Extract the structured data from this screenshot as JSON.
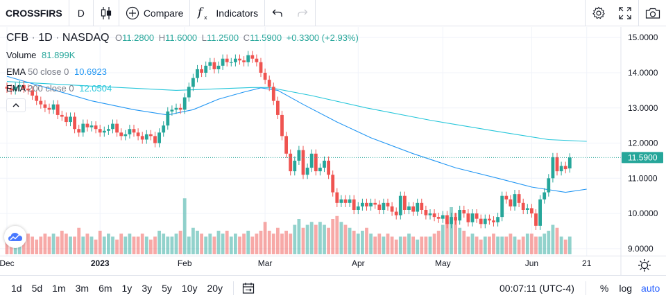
{
  "toolbar": {
    "symbol": "CROSSFIRS",
    "interval": "D",
    "compare_label": "Compare",
    "indicators_label": "Indicators"
  },
  "legend": {
    "symbol": "CFB",
    "interval": "1D",
    "exchange": "NASDAQ",
    "o_label": "O",
    "o_value": "11.2800",
    "h_label": "H",
    "h_value": "11.6000",
    "l_label": "L",
    "l_value": "11.2500",
    "c_label": "C",
    "c_value": "11.5900",
    "change": "+0.3300 (+2.93%)",
    "volume_label": "Volume",
    "volume_value": "81.899K",
    "ema50_label": "EMA",
    "ema50_params": "50 close 0",
    "ema50_value": "10.6923",
    "ema200_label": "EMA",
    "ema200_params": "200 close 0",
    "ema200_value": "12.0504"
  },
  "colors": {
    "up": "#26a69a",
    "down": "#ef5350",
    "ema50": "#2196f3",
    "ema200": "#26c6da",
    "price_tag": "#26a69a"
  },
  "chart_data": {
    "type": "candlestick",
    "symbol": "CFB",
    "exchange": "NASDAQ",
    "interval": "1D",
    "ylim": [
      8.8,
      15.3
    ],
    "yticks": [
      "15.0000",
      "14.0000",
      "13.0000",
      "12.0000",
      "11.0000",
      "10.0000",
      "9.0000"
    ],
    "ytick_values": [
      15,
      14,
      13,
      12,
      11,
      10,
      9
    ],
    "xticks": [
      {
        "label": "Dec",
        "index": 0,
        "bold": false
      },
      {
        "label": "2023",
        "index": 22,
        "bold": true
      },
      {
        "label": "Feb",
        "index": 42,
        "bold": false
      },
      {
        "label": "Mar",
        "index": 61,
        "bold": false
      },
      {
        "label": "Apr",
        "index": 83,
        "bold": false
      },
      {
        "label": "May",
        "index": 103,
        "bold": false
      },
      {
        "label": "Jun",
        "index": 124,
        "bold": false
      },
      {
        "label": "21",
        "index": 137,
        "bold": false
      }
    ],
    "last_price": 11.59,
    "last_price_label": "11.5900",
    "close": [
      13.55,
      13.5,
      13.6,
      13.65,
      13.55,
      13.5,
      13.35,
      13.2,
      13.1,
      13.0,
      12.95,
      13.1,
      12.8,
      12.75,
      12.6,
      12.75,
      12.4,
      12.3,
      12.55,
      12.45,
      12.5,
      12.4,
      12.3,
      12.35,
      12.4,
      12.55,
      12.3,
      12.2,
      12.25,
      12.4,
      12.3,
      12.2,
      12.1,
      12.25,
      12.2,
      12.0,
      12.3,
      12.5,
      12.9,
      12.95,
      13.0,
      12.95,
      13.3,
      13.6,
      13.85,
      14.1,
      14.0,
      14.2,
      14.3,
      14.1,
      14.2,
      14.4,
      14.3,
      14.3,
      14.4,
      14.35,
      14.3,
      14.5,
      14.4,
      14.3,
      14.0,
      13.8,
      13.6,
      13.2,
      12.8,
      12.2,
      11.7,
      11.2,
      11.5,
      11.8,
      11.1,
      11.3,
      11.7,
      11.2,
      11.3,
      11.5,
      11.1,
      10.6,
      10.3,
      10.4,
      10.3,
      10.4,
      10.1,
      10.2,
      10.3,
      10.2,
      10.3,
      10.25,
      10.1,
      10.3,
      10.2,
      10.05,
      9.95,
      10.5,
      10.1,
      10.2,
      10.05,
      10.3,
      10.1,
      9.95,
      10.0,
      9.9,
      9.85,
      9.95,
      9.7,
      9.9,
      9.8,
      10.1,
      10.0,
      9.75,
      10.0,
      9.85,
      9.7,
      9.85,
      9.8,
      9.75,
      9.9,
      10.5,
      10.4,
      10.2,
      10.55,
      10.3,
      10.1,
      10.15,
      10.0,
      9.65,
      10.4,
      10.6,
      11.0,
      11.6,
      11.2,
      11.35,
      11.26,
      11.59
    ],
    "open": [
      13.6,
      13.55,
      13.5,
      13.6,
      13.65,
      13.55,
      13.5,
      13.35,
      13.2,
      13.1,
      13.0,
      12.95,
      13.1,
      12.8,
      12.75,
      12.6,
      12.75,
      12.4,
      12.3,
      12.55,
      12.45,
      12.5,
      12.4,
      12.3,
      12.35,
      12.4,
      12.55,
      12.3,
      12.2,
      12.25,
      12.4,
      12.3,
      12.2,
      12.1,
      12.25,
      12.2,
      12.0,
      12.3,
      12.5,
      12.9,
      12.95,
      13.0,
      12.95,
      13.3,
      13.6,
      13.85,
      14.1,
      14.0,
      14.2,
      14.3,
      14.1,
      14.2,
      14.4,
      14.3,
      14.3,
      14.4,
      14.35,
      14.3,
      14.5,
      14.4,
      14.3,
      14.0,
      13.8,
      13.6,
      13.2,
      12.8,
      12.2,
      11.7,
      11.2,
      11.5,
      11.8,
      11.1,
      11.3,
      11.7,
      11.2,
      11.3,
      11.5,
      11.1,
      10.6,
      10.3,
      10.4,
      10.3,
      10.4,
      10.1,
      10.2,
      10.3,
      10.2,
      10.3,
      10.25,
      10.1,
      10.3,
      10.2,
      10.05,
      9.95,
      10.5,
      10.1,
      10.2,
      10.05,
      10.3,
      10.1,
      9.95,
      10.0,
      9.9,
      9.85,
      9.95,
      9.7,
      9.9,
      9.8,
      10.1,
      10.0,
      9.75,
      10.0,
      9.85,
      9.7,
      9.85,
      9.8,
      9.75,
      9.9,
      10.5,
      10.4,
      10.2,
      10.55,
      10.3,
      10.1,
      10.15,
      10.0,
      9.65,
      10.4,
      10.6,
      11.0,
      11.6,
      11.2,
      11.35,
      11.28
    ],
    "volume_fraction": [
      0.25,
      0.3,
      0.35,
      0.4,
      0.3,
      0.35,
      0.3,
      0.25,
      0.3,
      0.35,
      0.3,
      0.35,
      0.3,
      0.4,
      0.35,
      0.3,
      0.3,
      0.45,
      0.3,
      0.35,
      0.3,
      0.25,
      0.4,
      0.3,
      0.35,
      0.3,
      0.25,
      0.35,
      0.3,
      0.35,
      0.3,
      0.3,
      0.35,
      0.3,
      0.25,
      0.3,
      0.4,
      0.35,
      0.3,
      0.3,
      0.35,
      0.4,
      0.95,
      0.3,
      0.45,
      0.4,
      0.35,
      0.3,
      0.35,
      0.3,
      0.4,
      0.35,
      0.4,
      0.3,
      0.35,
      0.3,
      0.35,
      0.4,
      0.3,
      0.35,
      0.4,
      0.55,
      0.4,
      0.35,
      0.45,
      0.35,
      0.4,
      0.35,
      0.5,
      0.6,
      0.45,
      0.5,
      0.55,
      0.5,
      0.55,
      0.5,
      0.45,
      0.6,
      0.65,
      0.55,
      0.5,
      0.45,
      0.4,
      0.35,
      0.4,
      0.45,
      0.35,
      0.3,
      0.35,
      0.3,
      0.35,
      0.3,
      0.25,
      0.3,
      0.3,
      0.35,
      0.3,
      0.25,
      0.3,
      0.3,
      0.3,
      0.35,
      0.4,
      0.5,
      0.55,
      0.8,
      0.7,
      0.45,
      0.4,
      0.3,
      0.35,
      0.3,
      0.25,
      0.3,
      0.3,
      0.35,
      0.3,
      0.3,
      0.3,
      0.35,
      0.3,
      0.25,
      0.3,
      0.35,
      0.35,
      0.3,
      0.3,
      0.35,
      0.4,
      0.5,
      0.45,
      0.3,
      0.25,
      0.3
    ],
    "ema50_points": [
      [
        0,
        13.9
      ],
      [
        10,
        13.55
      ],
      [
        20,
        13.2
      ],
      [
        30,
        12.95
      ],
      [
        38,
        12.8
      ],
      [
        44,
        12.95
      ],
      [
        50,
        13.25
      ],
      [
        56,
        13.45
      ],
      [
        60,
        13.57
      ],
      [
        64,
        13.5
      ],
      [
        70,
        13.1
      ],
      [
        78,
        12.6
      ],
      [
        86,
        12.15
      ],
      [
        96,
        11.7
      ],
      [
        106,
        11.3
      ],
      [
        116,
        11.0
      ],
      [
        124,
        10.75
      ],
      [
        132,
        10.6
      ],
      [
        137,
        10.69
      ]
    ],
    "ema200_points": [
      [
        0,
        13.75
      ],
      [
        20,
        13.62
      ],
      [
        40,
        13.5
      ],
      [
        58,
        13.58
      ],
      [
        62,
        13.58
      ],
      [
        72,
        13.35
      ],
      [
        85,
        13.0
      ],
      [
        100,
        12.65
      ],
      [
        115,
        12.35
      ],
      [
        128,
        12.1
      ],
      [
        137,
        12.05
      ]
    ]
  },
  "bottombar": {
    "ranges": [
      "1d",
      "5d",
      "1m",
      "3m",
      "6m",
      "1y",
      "3y",
      "5y",
      "10y",
      "20y"
    ],
    "time": "00:07:11 (UTC-4)",
    "percent_label": "%",
    "log_label": "log",
    "auto_label": "auto"
  }
}
